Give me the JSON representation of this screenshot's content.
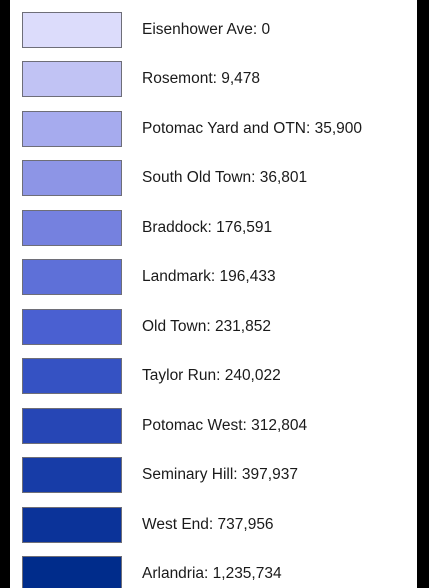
{
  "legend": {
    "items": [
      {
        "label": "Eisenhower Ave: 0",
        "color": "#dcdcfb"
      },
      {
        "label": "Rosemont: 9,478",
        "color": "#c1c3f4"
      },
      {
        "label": "Potomac Yard and OTN: 35,900",
        "color": "#a6abee"
      },
      {
        "label": "South Old Town: 36,801",
        "color": "#8d95e6"
      },
      {
        "label": "Braddock: 176,591",
        "color": "#7581df"
      },
      {
        "label": "Landmark: 196,433",
        "color": "#5e70d8"
      },
      {
        "label": "Old Town: 231,852",
        "color": "#4a60d1"
      },
      {
        "label": "Taylor Run: 240,022",
        "color": "#3552c3"
      },
      {
        "label": "Potomac West: 312,804",
        "color": "#2646b5"
      },
      {
        "label": "Seminary Hill: 397,937",
        "color": "#173ca7"
      },
      {
        "label": "West End: 737,956",
        "color": "#0b3399"
      },
      {
        "label": "Arlandria: 1,235,734",
        "color": "#002c8b"
      }
    ]
  }
}
